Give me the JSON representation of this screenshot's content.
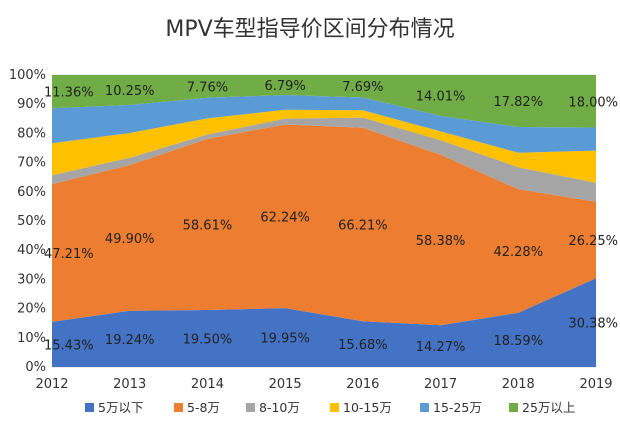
{
  "chart_data": {
    "type": "area",
    "stacked_percent": true,
    "title": "MPV车型指导价区间分布情况",
    "categories": [
      "2012",
      "2013",
      "2014",
      "2015",
      "2016",
      "2017",
      "2018",
      "2019"
    ],
    "yticks": [
      "0%",
      "10%",
      "20%",
      "30%",
      "40%",
      "50%",
      "60%",
      "70%",
      "80%",
      "90%",
      "100%"
    ],
    "ylim": [
      0,
      100
    ],
    "grid": true,
    "legend_position": "bottom",
    "series": [
      {
        "name": "5万以下",
        "color": "#4472C4",
        "values": [
          15.43,
          19.24,
          19.5,
          19.95,
          15.68,
          14.27,
          18.59,
          30.38
        ],
        "labels": [
          "15.43%",
          "19.24%",
          "19.50%",
          "19.95%",
          "15.68%",
          "14.27%",
          "18.59%",
          "30.38%"
        ]
      },
      {
        "name": "5-8万",
        "color": "#ED7D31",
        "values": [
          47.21,
          49.9,
          58.61,
          62.24,
          66.21,
          58.38,
          42.28,
          26.25
        ],
        "labels": [
          "47.21%",
          "49.90%",
          "58.61%",
          "62.24%",
          "66.21%",
          "58.38%",
          "42.28%",
          "26.25%"
        ]
      },
      {
        "name": "8-10万",
        "color": "#A5A5A5",
        "values": [
          3.0,
          2.5,
          1.5,
          2.0,
          3.5,
          5.0,
          7.5,
          6.5
        ]
      },
      {
        "name": "10-15万",
        "color": "#FFC000",
        "values": [
          11.0,
          8.5,
          5.5,
          3.0,
          2.5,
          3.0,
          5.0,
          11.0
        ]
      },
      {
        "name": "15-25万",
        "color": "#5B9BD5",
        "values": [
          12.0,
          9.6,
          7.1,
          5.0,
          4.4,
          5.3,
          8.8,
          7.9
        ]
      },
      {
        "name": "25万以上",
        "color": "#70AD47",
        "values": [
          11.36,
          10.25,
          7.76,
          6.79,
          7.69,
          14.01,
          17.82,
          18.0
        ],
        "labels": [
          "11.36%",
          "10.25%",
          "7.76%",
          "6.79%",
          "7.69%",
          "14.01%",
          "17.82%",
          "18.00%"
        ]
      }
    ]
  }
}
